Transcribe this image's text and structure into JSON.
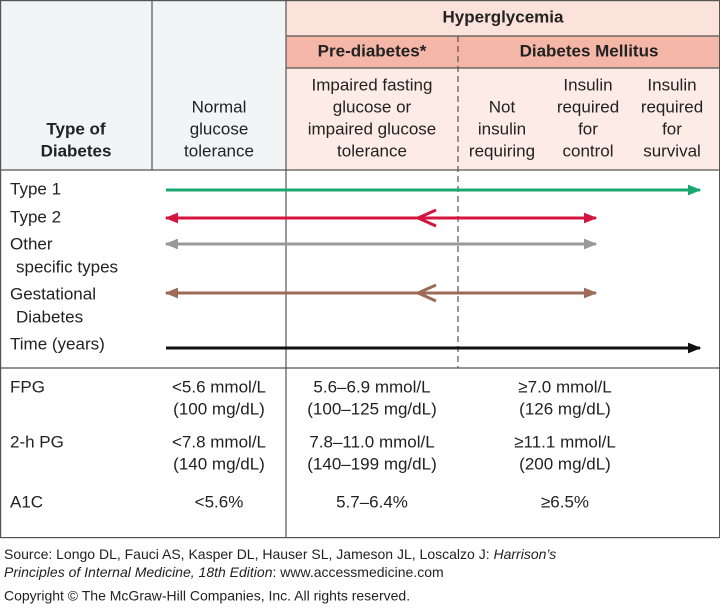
{
  "header": {
    "group": "Hyperglycemia",
    "prediabetes": "Pre-diabetes*",
    "diabetes": "Diabetes Mellitus",
    "type_label": [
      "Type of",
      "Diabetes"
    ],
    "columns": [
      [
        "Normal",
        "glucose",
        "tolerance"
      ],
      [
        "Impaired fasting",
        "glucose or",
        "impaired glucose",
        "tolerance"
      ],
      [
        "Not",
        "insulin",
        "requiring"
      ],
      [
        "Insulin",
        "required",
        "for",
        "control"
      ],
      [
        "Insulin",
        "required",
        "for",
        "survival"
      ]
    ]
  },
  "types": [
    [
      "Type 1"
    ],
    [
      "Type 2"
    ],
    [
      "Other",
      "specific types"
    ],
    [
      "Gestational",
      "Diabetes"
    ],
    [
      "Time (years)"
    ]
  ],
  "criteria": [
    {
      "test": "FPG",
      "normal": [
        "<5.6 mmol/L",
        "(100 mg/dL)"
      ],
      "prediabetes": [
        "5.6–6.9 mmol/L",
        "(100–125 mg/dL)"
      ],
      "diabetes": [
        "≥7.0 mmol/L",
        "(126 mg/dL)"
      ]
    },
    {
      "test": "2-h PG",
      "normal": [
        "<7.8 mmol/L",
        "(140 mg/dL)"
      ],
      "prediabetes": [
        "7.8–11.0 mmol/L",
        "(140–199 mg/dL)"
      ],
      "diabetes": [
        "≥11.1 mmol/L",
        "(200 mg/dL)"
      ]
    },
    {
      "test": "A1C",
      "normal": [
        "<5.6%"
      ],
      "prediabetes": [
        "5.7–6.4%"
      ],
      "diabetes": [
        "≥6.5%"
      ]
    }
  ],
  "source": {
    "line1": "Source: Longo DL, Fauci AS, Kasper DL, Hauser SL, Jameson JL, Loscalzo J: ",
    "line1_italic": "Harrison’s",
    "line2_italic": "Principles of Internal Medicine, 18th Edition",
    "line2": ": www.accessmedicine.com",
    "copyright": "Copyright © The McGraw-Hill Companies, Inc. All rights reserved."
  }
}
